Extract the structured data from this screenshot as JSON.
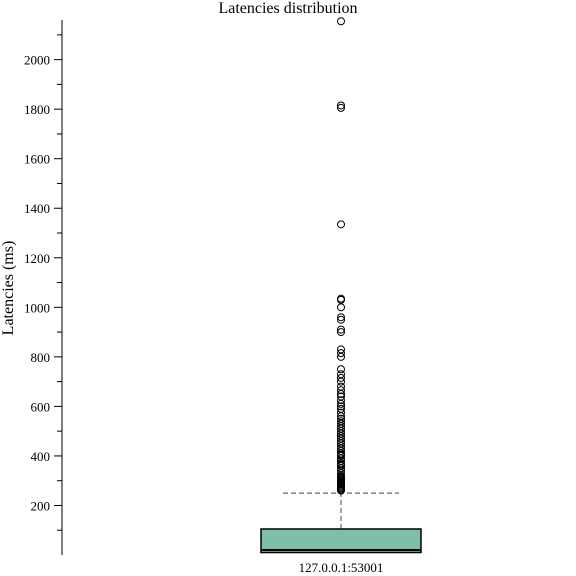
{
  "chart_data": {
    "type": "box",
    "title": "Latencies distribution",
    "xlabel": "",
    "ylabel": "Latencies (ms)",
    "ylim": [
      0,
      2160
    ],
    "yticks_major": [
      200,
      400,
      600,
      800,
      1000,
      1200,
      1400,
      1600,
      1800,
      2000
    ],
    "yticks_minor_step": 100,
    "grid": false,
    "legend": "none",
    "box_color": "#7fbfa8",
    "categories": [
      "127.0.0.1:53001"
    ],
    "series": [
      {
        "q1": 10,
        "median": 20,
        "q3": 105,
        "whisker_low": 0,
        "whisker_high": 250,
        "outliers": [
          260,
          265,
          270,
          275,
          280,
          285,
          290,
          295,
          300,
          305,
          310,
          315,
          320,
          330,
          340,
          350,
          360,
          365,
          370,
          380,
          390,
          400,
          405,
          410,
          420,
          430,
          440,
          450,
          460,
          470,
          480,
          490,
          500,
          510,
          520,
          530,
          540,
          550,
          560,
          575,
          590,
          600,
          610,
          625,
          640,
          650,
          665,
          680,
          700,
          715,
          730,
          750,
          800,
          815,
          830,
          900,
          910,
          950,
          960,
          1000,
          1030,
          1035,
          1335,
          1805,
          1815,
          2155
        ]
      }
    ]
  }
}
